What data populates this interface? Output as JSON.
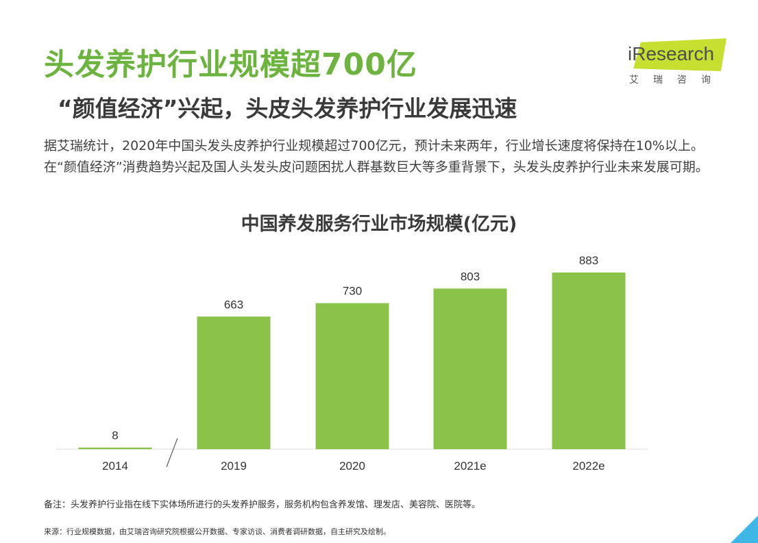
{
  "header": {
    "title": "头发养护行业规模超700亿",
    "subtitle": "“颜值经济”兴起，头皮头发养护行业发展迅速",
    "body": "据艾瑞统计，2020年中国头发头皮养护行业规模超过700亿元，预计未来两年，行业增长速度将保持在10%以上。在“颜值经济”消费趋势兴起及国人头发头皮问题困扰人群基数巨大等多重背景下，头发头皮养护行业未来发展可期。"
  },
  "logo": {
    "text": "iResearch",
    "subtext": "艾瑞咨询",
    "color": "#c7df31"
  },
  "chart_data": {
    "type": "bar",
    "title": "中国养发服务行业市场规模(亿元)",
    "categories": [
      "2014",
      "2019",
      "2020",
      "2021e",
      "2022e"
    ],
    "values": [
      8,
      663,
      730,
      803,
      883
    ],
    "axis_break_between": [
      "2014",
      "2019"
    ],
    "bar_color": "#8bc34a",
    "grid": false,
    "legend": "none"
  },
  "footer": {
    "note": "备注：头发养护行业指在线下实体场所进行的头发养护服务，服务机构包含养发馆、理发店、美容院、医院等。",
    "source": "来源：行业规模数据，由艾瑞咨询研究院根据公开数据、专家访谈、消费者调研数据，自主研究及绘制。"
  }
}
